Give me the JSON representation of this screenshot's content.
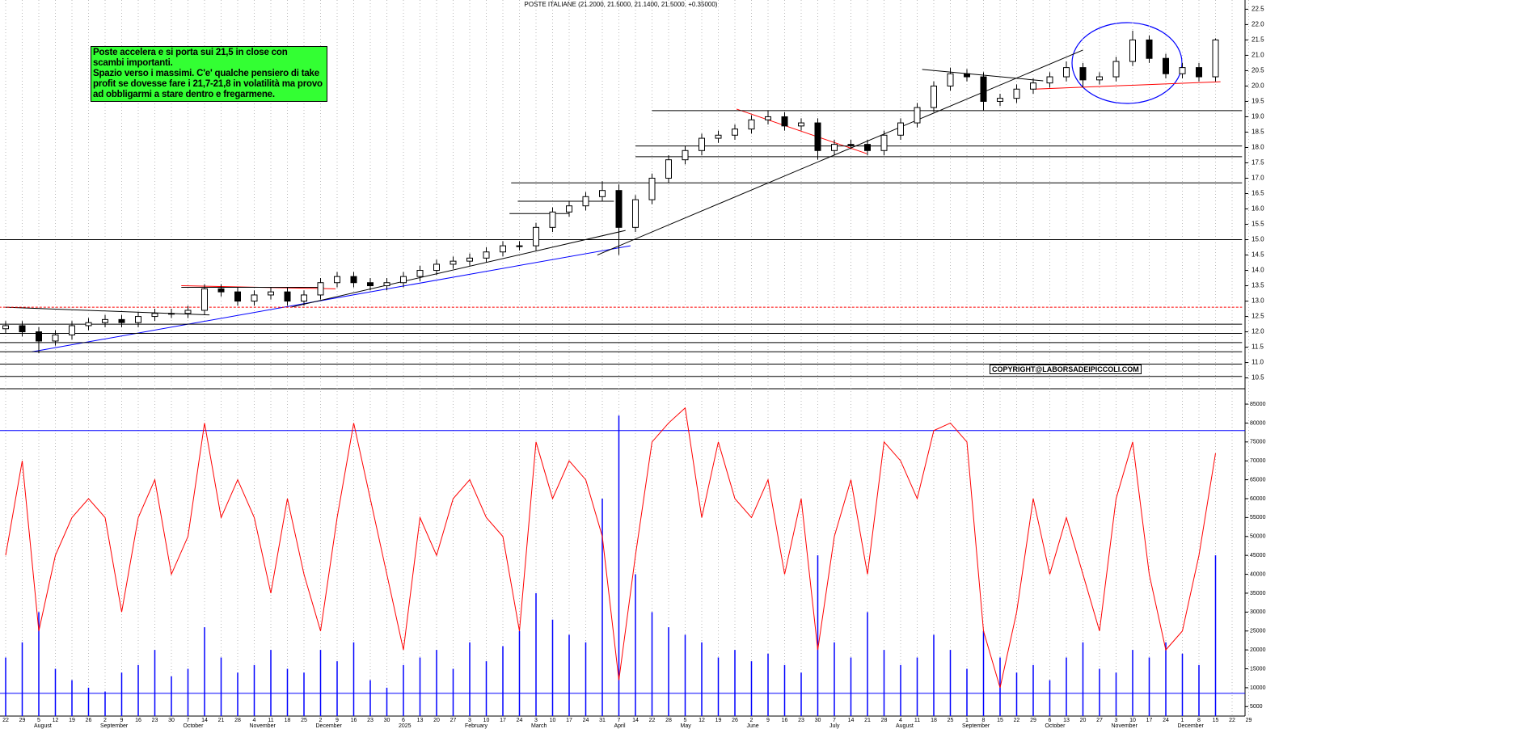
{
  "chart_data": {
    "type": "candlestick",
    "title": "POSTE ITALIANE (21.2000, 21.5000, 21.1400, 21.5000, +0.35000)",
    "annotation": {
      "lines": [
        "Poste accelera e si porta sui 21,5 in close con",
        "scambi importanti.",
        "Spazio verso i massimi. C'e' qualche pensiero di take",
        "profit se dovesse fare i 21,7-21,8 in volatilità ma provo",
        "ad obbligarmi a stare dentro e fregarmene."
      ],
      "background": "#33ff33"
    },
    "watermark": "COPYRIGHT@LABORSADEIPICCOLI.COM",
    "categories": [
      "22",
      "29",
      "5",
      "12",
      "19",
      "26",
      "2",
      "9",
      "16",
      "23",
      "30",
      "7",
      "14",
      "21",
      "28",
      "4",
      "11",
      "18",
      "25",
      "2",
      "9",
      "16",
      "23",
      "30",
      "6",
      "13",
      "20",
      "27",
      "3",
      "10",
      "17",
      "24",
      "3",
      "10",
      "17",
      "24",
      "31",
      "7",
      "14",
      "22",
      "28",
      "5",
      "12",
      "19",
      "26",
      "2",
      "9",
      "16",
      "23",
      "30",
      "7",
      "14",
      "21",
      "28",
      "4",
      "11",
      "18",
      "25",
      "1",
      "8",
      "15",
      "22",
      "29",
      "6",
      "13",
      "20",
      "27",
      "3",
      "10",
      "17",
      "24",
      "1",
      "8",
      "15",
      "22",
      "29"
    ],
    "x_month_labels": [
      null,
      null,
      "August",
      null,
      null,
      null,
      "September",
      null,
      null,
      null,
      null,
      "October",
      null,
      null,
      null,
      "November",
      null,
      null,
      null,
      "December",
      null,
      null,
      null,
      null,
      "2025",
      null,
      null,
      null,
      "February",
      null,
      null,
      null,
      "March",
      null,
      null,
      null,
      null,
      "April",
      null,
      null,
      null,
      "May",
      null,
      null,
      null,
      "June",
      null,
      null,
      null,
      null,
      "July",
      null,
      null,
      null,
      "August",
      null,
      null,
      null,
      "September",
      null,
      null,
      null,
      null,
      "October",
      null,
      null,
      null,
      "November",
      null,
      null,
      null,
      "December",
      null,
      null,
      null,
      null
    ],
    "open": [
      12.1,
      12.2,
      12.0,
      11.7,
      11.9,
      12.2,
      12.3,
      12.4,
      12.3,
      12.5,
      12.6,
      12.6,
      12.7,
      13.4,
      13.3,
      13.0,
      13.2,
      13.3,
      13.0,
      13.2,
      13.6,
      13.8,
      13.6,
      13.5,
      13.6,
      13.8,
      14.0,
      14.2,
      14.3,
      14.4,
      14.6,
      14.8,
      14.8,
      15.4,
      15.9,
      16.1,
      16.4,
      16.6,
      15.4,
      16.3,
      17.0,
      17.6,
      17.9,
      18.3,
      18.4,
      18.6,
      18.9,
      19.0,
      18.7,
      18.8,
      17.9,
      18.1,
      18.1,
      17.9,
      18.4,
      18.8,
      19.3,
      20.0,
      20.4,
      20.3,
      19.5,
      19.6,
      19.9,
      20.1,
      20.3,
      20.6,
      20.2,
      20.3,
      20.8,
      21.5,
      20.9,
      20.4,
      20.6,
      20.3,
      null,
      null
    ],
    "high": [
      12.35,
      12.35,
      12.15,
      12.05,
      12.35,
      12.45,
      12.55,
      12.55,
      12.65,
      12.75,
      12.75,
      12.85,
      13.55,
      13.55,
      13.45,
      13.35,
      13.45,
      13.45,
      13.35,
      13.75,
      13.95,
      13.95,
      13.75,
      13.75,
      13.95,
      14.15,
      14.35,
      14.45,
      14.55,
      14.75,
      14.95,
      14.95,
      15.55,
      16.05,
      16.25,
      16.55,
      16.9,
      16.8,
      16.45,
      17.15,
      17.75,
      18.05,
      18.45,
      18.55,
      18.75,
      19.05,
      19.2,
      19.15,
      18.95,
      18.95,
      18.25,
      18.25,
      18.25,
      18.55,
      18.95,
      19.45,
      20.15,
      20.6,
      20.55,
      20.45,
      19.75,
      20.05,
      20.25,
      20.45,
      20.8,
      20.75,
      20.45,
      20.95,
      21.8,
      21.65,
      21.05,
      20.75,
      20.75,
      21.55,
      null,
      null
    ],
    "low": [
      11.95,
      11.85,
      11.3,
      11.55,
      11.75,
      12.05,
      12.15,
      12.15,
      12.15,
      12.35,
      12.45,
      12.45,
      12.55,
      13.15,
      12.85,
      12.85,
      13.05,
      12.85,
      12.85,
      13.05,
      13.45,
      13.45,
      13.35,
      13.35,
      13.45,
      13.65,
      13.85,
      14.05,
      14.15,
      14.25,
      14.45,
      14.65,
      14.65,
      15.25,
      15.75,
      15.95,
      16.25,
      14.5,
      15.25,
      16.15,
      16.85,
      17.45,
      17.75,
      18.15,
      18.25,
      18.45,
      18.75,
      18.55,
      18.55,
      17.6,
      17.75,
      17.95,
      17.75,
      17.75,
      18.25,
      18.65,
      19.15,
      19.85,
      20.15,
      19.2,
      19.35,
      19.45,
      19.75,
      19.95,
      20.15,
      19.95,
      20.05,
      20.15,
      20.65,
      20.75,
      20.25,
      20.25,
      20.15,
      20.15,
      null,
      null
    ],
    "close": [
      12.2,
      12.0,
      11.7,
      11.9,
      12.2,
      12.3,
      12.4,
      12.3,
      12.5,
      12.6,
      12.6,
      12.7,
      13.4,
      13.3,
      13.0,
      13.2,
      13.3,
      13.0,
      13.2,
      13.6,
      13.8,
      13.6,
      13.5,
      13.6,
      13.8,
      14.0,
      14.2,
      14.3,
      14.4,
      14.6,
      14.8,
      14.8,
      15.4,
      15.9,
      16.1,
      16.4,
      16.6,
      15.4,
      16.3,
      17.0,
      17.6,
      17.9,
      18.3,
      18.4,
      18.6,
      18.9,
      19.0,
      18.7,
      18.8,
      17.9,
      18.1,
      18.1,
      17.9,
      18.4,
      18.8,
      19.3,
      20.0,
      20.4,
      20.3,
      19.5,
      19.6,
      19.9,
      20.1,
      20.3,
      20.6,
      20.2,
      20.3,
      20.8,
      21.5,
      20.9,
      20.4,
      20.6,
      20.3,
      21.5,
      null,
      null
    ],
    "ylim": [
      10.2,
      22.8
    ],
    "yticks": [
      {
        "value": 10.5,
        "label": "10.5"
      },
      {
        "value": 11,
        "label": "11.0"
      },
      {
        "value": 11.5,
        "label": "11.5"
      },
      {
        "value": 12,
        "label": "12.0"
      },
      {
        "value": 12.5,
        "label": "12.5"
      },
      {
        "value": 13,
        "label": "13.0"
      },
      {
        "value": 13.5,
        "label": "13.5"
      },
      {
        "value": 14,
        "label": "14.0"
      },
      {
        "value": 14.5,
        "label": "14.5"
      },
      {
        "value": 15,
        "label": "15.0"
      },
      {
        "value": 15.5,
        "label": "15.5"
      },
      {
        "value": 16,
        "label": "16.0"
      },
      {
        "value": 16.5,
        "label": "16.5"
      },
      {
        "value": 17,
        "label": "17.0"
      },
      {
        "value": 17.5,
        "label": "17.5"
      },
      {
        "value": 18,
        "label": "18.0"
      },
      {
        "value": 18.5,
        "label": "18.5"
      },
      {
        "value": 19,
        "label": "19.0"
      },
      {
        "value": 19.5,
        "label": "19.5"
      },
      {
        "value": 20,
        "label": "20.0"
      },
      {
        "value": 20.5,
        "label": "20.5"
      },
      {
        "value": 21,
        "label": "21.0"
      },
      {
        "value": 21.5,
        "label": "21.5"
      },
      {
        "value": 22,
        "label": "22.0"
      },
      {
        "value": 22.5,
        "label": "22.5"
      }
    ],
    "lines": [
      {
        "color": "#0000ff",
        "points": [
          [
            1.6,
            11.35
          ],
          [
            37.7,
            14.8
          ]
        ]
      },
      {
        "color": "#000000",
        "points": [
          [
            17.2,
            12.8
          ],
          [
            37.4,
            15.3
          ]
        ]
      },
      {
        "color": "#000000",
        "points": [
          [
            35.7,
            14.5
          ],
          [
            65,
            21.17
          ]
        ]
      },
      {
        "color": "#000000",
        "points": [
          [
            0,
            12.8
          ],
          [
            12.3,
            12.55
          ]
        ]
      },
      {
        "color": "#ff0000",
        "points": [
          [
            10.6,
            13.5
          ],
          [
            19.9,
            13.4
          ]
        ]
      },
      {
        "color": "#000000",
        "points": [
          [
            10.6,
            13.45
          ],
          [
            19.2,
            13.45
          ]
        ]
      },
      {
        "color": "#ff0000",
        "points": [
          [
            44.1,
            19.25
          ],
          [
            51.95,
            17.8
          ]
        ]
      },
      {
        "color": "#000000",
        "points": [
          [
            55.3,
            20.54
          ],
          [
            62.6,
            20.17
          ]
        ]
      },
      {
        "color": "#ff0000",
        "points": [
          [
            62.1,
            19.9
          ],
          [
            73.3,
            20.14
          ]
        ]
      },
      {
        "color": "#000000",
        "points": [
          [
            30.9,
            16.25
          ],
          [
            36.7,
            16.25
          ]
        ]
      },
      {
        "color": "#000000",
        "points": [
          [
            30.4,
            15.85
          ],
          [
            34,
            15.85
          ]
        ]
      },
      {
        "color": "#000000",
        "points": [
          [
            39,
            19.2
          ],
          [
            74.6,
            19.2
          ]
        ]
      },
      {
        "color": "#000000",
        "points": [
          [
            38,
            18.05
          ],
          [
            74.6,
            18.05
          ]
        ]
      },
      {
        "color": "#000000",
        "points": [
          [
            38,
            17.7
          ],
          [
            74.6,
            17.7
          ]
        ]
      },
      {
        "color": "#000000",
        "points": [
          [
            30.5,
            16.85
          ],
          [
            74.6,
            16.85
          ]
        ]
      },
      {
        "color": "#000000",
        "points": [
          [
            -0.4,
            15.0
          ],
          [
            74.6,
            15.0
          ]
        ]
      },
      {
        "color": "#ff0000",
        "dashed": true,
        "points": [
          [
            -0.4,
            12.8
          ],
          [
            74.6,
            12.8
          ]
        ]
      },
      {
        "color": "#000000",
        "points": [
          [
            -0.4,
            12.25
          ],
          [
            74.6,
            12.25
          ]
        ]
      },
      {
        "color": "#000000",
        "points": [
          [
            -0.4,
            11.95
          ],
          [
            74.6,
            11.95
          ]
        ]
      },
      {
        "color": "#000000",
        "points": [
          [
            -0.4,
            11.65
          ],
          [
            74.6,
            11.65
          ]
        ]
      },
      {
        "color": "#000000",
        "points": [
          [
            -0.4,
            11.35
          ],
          [
            74.6,
            11.35
          ]
        ]
      },
      {
        "color": "#000000",
        "points": [
          [
            -0.4,
            10.95
          ],
          [
            74.6,
            10.95
          ]
        ]
      },
      {
        "color": "#000000",
        "points": [
          [
            -0.4,
            10.55
          ],
          [
            74.6,
            10.55
          ]
        ]
      }
    ],
    "volume": {
      "color": "#0000ff",
      "values": [
        18000,
        22000,
        30000,
        15000,
        12000,
        10000,
        9000,
        14000,
        16000,
        20000,
        13000,
        15000,
        26000,
        18000,
        14000,
        16000,
        20000,
        15000,
        14000,
        20000,
        17000,
        22000,
        12000,
        10000,
        16000,
        18000,
        20000,
        15000,
        22000,
        17000,
        21000,
        25000,
        35000,
        28000,
        24000,
        22000,
        60000,
        82000,
        40000,
        30000,
        26000,
        24000,
        22000,
        18000,
        20000,
        17000,
        19000,
        16000,
        14000,
        45000,
        22000,
        18000,
        30000,
        20000,
        16000,
        18000,
        24000,
        20000,
        15000,
        25000,
        18000,
        14000,
        16000,
        12000,
        18000,
        22000,
        15000,
        14000,
        20000,
        18000,
        22000,
        19000,
        16000,
        45000,
        null,
        null
      ]
    },
    "oscillator": {
      "color": "#ff0000",
      "values": [
        45000,
        70000,
        25000,
        45000,
        55000,
        60000,
        55000,
        30000,
        55000,
        65000,
        40000,
        50000,
        80000,
        55000,
        65000,
        55000,
        35000,
        60000,
        40000,
        25000,
        55000,
        80000,
        60000,
        40000,
        20000,
        55000,
        45000,
        60000,
        65000,
        55000,
        50000,
        25000,
        75000,
        60000,
        70000,
        65000,
        50000,
        12000,
        45000,
        75000,
        80000,
        84000,
        55000,
        75000,
        60000,
        55000,
        65000,
        40000,
        60000,
        20000,
        50000,
        65000,
        40000,
        75000,
        70000,
        60000,
        78000,
        80000,
        75000,
        25000,
        10000,
        30000,
        60000,
        40000,
        55000,
        40000,
        25000,
        60000,
        75000,
        40000,
        20000,
        25000,
        45000,
        72000,
        null,
        null
      ]
    },
    "volume_levels": [
      78000,
      8500
    ],
    "y2lim": [
      2500,
      88000
    ],
    "y2ticks": [
      5000,
      10000,
      15000,
      20000,
      25000,
      30000,
      35000,
      40000,
      45000,
      50000,
      55000,
      60000,
      65000,
      70000,
      75000,
      80000,
      85000
    ],
    "grid": true
  }
}
